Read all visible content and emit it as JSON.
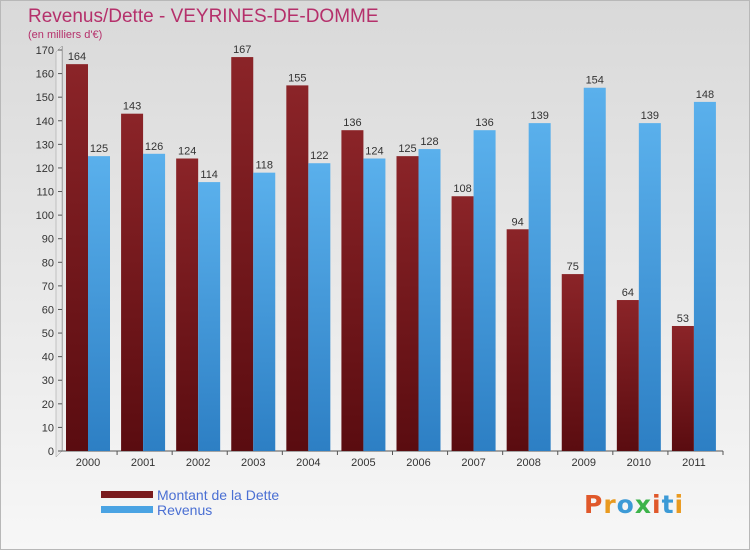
{
  "chart_data": {
    "type": "bar",
    "title": "Revenus/Dette - VEYRINES-DE-DOMME",
    "subtitle": "(en milliers d'€)",
    "categories": [
      "2000",
      "2001",
      "2002",
      "2003",
      "2004",
      "2005",
      "2006",
      "2007",
      "2008",
      "2009",
      "2010",
      "2011"
    ],
    "series": [
      {
        "name": "Montant de la Dette",
        "color": "#7a1b1e",
        "values": [
          164,
          143,
          124,
          167,
          155,
          136,
          125,
          108,
          94,
          75,
          64,
          53
        ]
      },
      {
        "name": "Revenus",
        "color": "#4aa3e3",
        "values": [
          125,
          126,
          114,
          118,
          122,
          124,
          128,
          136,
          139,
          154,
          139,
          148
        ]
      }
    ],
    "ylim": [
      0,
      170
    ],
    "yticks": [
      "0",
      "10",
      "20",
      "30",
      "40",
      "50",
      "60",
      "70",
      "80",
      "90",
      "100",
      "110",
      "120",
      "130",
      "140",
      "150",
      "160",
      "170"
    ],
    "grid": false,
    "legend_position": "bottom-left"
  },
  "logo": {
    "text": "Proxiti",
    "letter_colors": [
      "#e0582a",
      "#e99a1f",
      "#3c9ad6",
      "#3cb34a",
      "#e0582a",
      "#3c9ad6",
      "#e99a1f"
    ]
  }
}
